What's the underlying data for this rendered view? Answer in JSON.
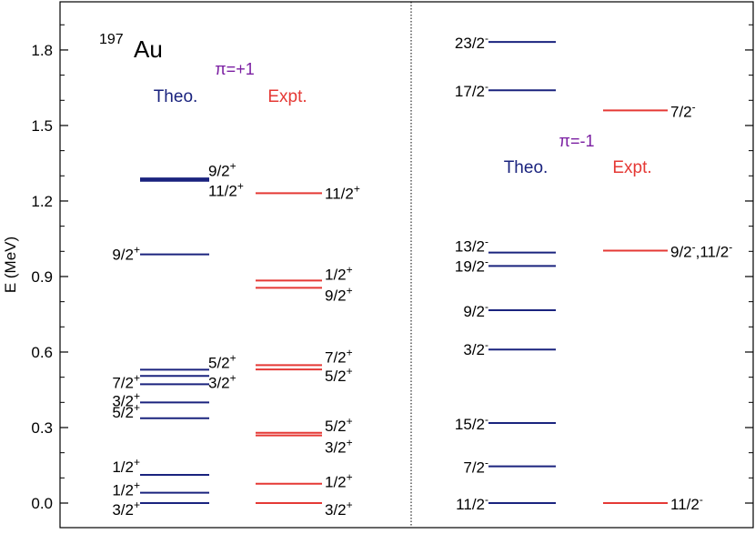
{
  "chart_data": {
    "type": "level-scheme",
    "nucleus": {
      "mass": "197",
      "symbol": "Au"
    },
    "ylabel": "E (MeV)",
    "ylim": [
      -0.1,
      1.98
    ],
    "yticks": [
      0.0,
      0.3,
      0.6,
      0.9,
      1.2,
      1.5,
      1.8
    ],
    "ytick_labels": [
      "0.0",
      "0.3",
      "0.6",
      "0.9",
      "1.2",
      "1.5",
      "1.8"
    ],
    "colors": {
      "theo": "#1a237e",
      "expt": "#e53935",
      "parity": "#7b1fa2",
      "text": "#000000"
    },
    "panels": [
      {
        "parity_label": "π=+1",
        "theo_label": "Theo.",
        "expt_label": "Expt.",
        "theo_levels": [
          {
            "energy": 0.0,
            "spin": "3/2",
            "parity": "+"
          },
          {
            "energy": 0.041,
            "spin": "1/2",
            "parity": "+"
          },
          {
            "energy": 0.112,
            "spin": "1/2",
            "parity": "+"
          },
          {
            "energy": 0.337,
            "spin": "5/2",
            "parity": "+"
          },
          {
            "energy": 0.4,
            "spin": "3/2",
            "parity": "+"
          },
          {
            "energy": 0.472,
            "spin": "7/2",
            "parity": "+"
          },
          {
            "energy": 0.505,
            "spin": "3/2",
            "parity": "+"
          },
          {
            "energy": 0.53,
            "spin": "5/2",
            "parity": "+"
          },
          {
            "energy": 0.988,
            "spin": "9/2",
            "parity": "+"
          },
          {
            "energy": 1.282,
            "spin": "9/2",
            "parity": "+"
          },
          {
            "energy": 1.288,
            "spin": "11/2",
            "parity": "+"
          }
        ],
        "expt_levels": [
          {
            "energy": 0.0,
            "spin": "3/2",
            "parity": "+"
          },
          {
            "energy": 0.077,
            "spin": "1/2",
            "parity": "+"
          },
          {
            "energy": 0.269,
            "spin": "3/2",
            "parity": "+"
          },
          {
            "energy": 0.279,
            "spin": "5/2",
            "parity": "+"
          },
          {
            "energy": 0.531,
            "spin": "5/2",
            "parity": "+"
          },
          {
            "energy": 0.548,
            "spin": "7/2",
            "parity": "+"
          },
          {
            "energy": 0.855,
            "spin": "9/2",
            "parity": "+"
          },
          {
            "energy": 0.884,
            "spin": "1/2",
            "parity": "+"
          },
          {
            "energy": 1.231,
            "spin": "11/2",
            "parity": "+"
          }
        ]
      },
      {
        "parity_label": "π=-1",
        "theo_label": "Theo.",
        "expt_label": "Expt.",
        "theo_levels": [
          {
            "energy": 0.0,
            "spin": "11/2",
            "parity": "-"
          },
          {
            "energy": 0.146,
            "spin": "7/2",
            "parity": "-"
          },
          {
            "energy": 0.318,
            "spin": "15/2",
            "parity": "-"
          },
          {
            "energy": 0.61,
            "spin": "3/2",
            "parity": "-"
          },
          {
            "energy": 0.766,
            "spin": "9/2",
            "parity": "-"
          },
          {
            "energy": 0.942,
            "spin": "19/2",
            "parity": "-"
          },
          {
            "energy": 0.995,
            "spin": "13/2",
            "parity": "-"
          },
          {
            "energy": 1.64,
            "spin": "17/2",
            "parity": "-"
          },
          {
            "energy": 1.832,
            "spin": "23/2",
            "parity": "-"
          }
        ],
        "expt_levels": [
          {
            "energy": 0.0,
            "spin": "11/2",
            "parity": "-"
          },
          {
            "energy": 1.003,
            "spin": "9/2",
            "parity": "-",
            "spin2": "11/2",
            "parity2": "-"
          },
          {
            "energy": 1.56,
            "spin": "7/2",
            "parity": "-"
          }
        ]
      }
    ]
  }
}
